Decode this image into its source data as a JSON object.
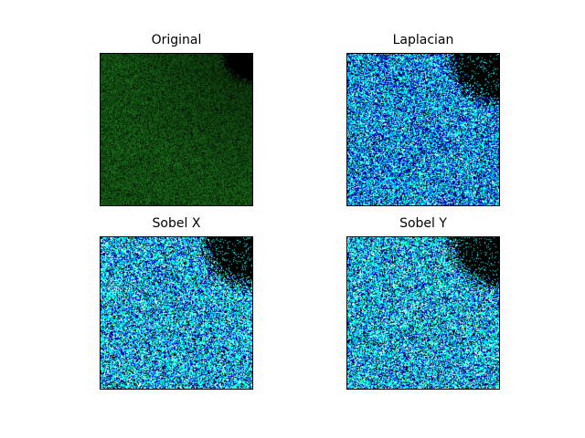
{
  "figure": {
    "panels": [
      {
        "title": "Original",
        "style": "original",
        "colors": [
          "#0b3d0b",
          "#1d6b1d",
          "#124f12",
          "#000000"
        ]
      },
      {
        "title": "Laplacian",
        "style": "edge",
        "colors": [
          "#00ffff",
          "#0000ff",
          "#000080",
          "#ffffff",
          "#00ff7f",
          "#000000"
        ]
      },
      {
        "title": "Sobel X",
        "style": "edge",
        "colors": [
          "#00ffff",
          "#0000ff",
          "#ffffff",
          "#00ff7f",
          "#000000"
        ]
      },
      {
        "title": "Sobel Y",
        "style": "edge",
        "colors": [
          "#00ffff",
          "#0000ff",
          "#ffffff",
          "#00ff7f",
          "#000000"
        ]
      }
    ]
  }
}
